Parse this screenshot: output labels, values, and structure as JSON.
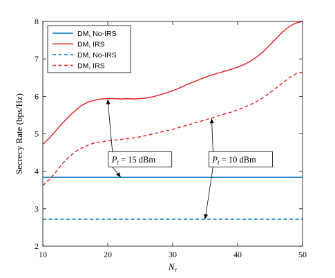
{
  "chart_data": {
    "type": "line",
    "title": "",
    "xlabel": "N",
    "xlabel_sub": "r",
    "ylabel": "Secrecy Rate (bps/Hz)",
    "xlim": [
      10,
      50
    ],
    "ylim": [
      2,
      8
    ],
    "xticks": [
      10,
      20,
      30,
      40,
      50
    ],
    "yticks": [
      2,
      3,
      4,
      5,
      6,
      7,
      8
    ],
    "grid": false,
    "legend_position": "top-left",
    "series": [
      {
        "name": "DM, No-IRS",
        "color": "#0072BD",
        "dash": "solid",
        "x": [
          10,
          50
        ],
        "y": [
          3.84,
          3.84
        ]
      },
      {
        "name": "DM, IRS",
        "color": "#E31A1C",
        "dash": "solid",
        "x": [
          10,
          11,
          12,
          13,
          14,
          15,
          16,
          17,
          18,
          19,
          20,
          21,
          22,
          23,
          24,
          25,
          26,
          27,
          28,
          29,
          30,
          31,
          32,
          33,
          34,
          35,
          36,
          37,
          38,
          39,
          40,
          41,
          42,
          43,
          44,
          45,
          46,
          47,
          48,
          49,
          50
        ],
        "y": [
          4.72,
          4.88,
          5.08,
          5.28,
          5.46,
          5.62,
          5.76,
          5.85,
          5.9,
          5.93,
          5.94,
          5.94,
          5.93,
          5.94,
          5.93,
          5.94,
          5.96,
          5.99,
          6.04,
          6.09,
          6.15,
          6.22,
          6.3,
          6.37,
          6.44,
          6.51,
          6.57,
          6.62,
          6.67,
          6.72,
          6.78,
          6.85,
          6.94,
          7.06,
          7.2,
          7.38,
          7.56,
          7.73,
          7.87,
          7.96,
          8.0
        ]
      },
      {
        "name": "DM, No-IRS",
        "color": "#0072BD",
        "dash": "dashed",
        "x": [
          10,
          50
        ],
        "y": [
          2.72,
          2.72
        ]
      },
      {
        "name": "DM, IRS",
        "color": "#E31A1C",
        "dash": "dashed",
        "x": [
          10,
          11,
          12,
          13,
          14,
          15,
          16,
          17,
          18,
          19,
          20,
          21,
          22,
          23,
          24,
          25,
          26,
          27,
          28,
          29,
          30,
          31,
          32,
          33,
          34,
          35,
          36,
          37,
          38,
          39,
          40,
          41,
          42,
          43,
          44,
          45,
          46,
          47,
          48,
          49,
          50
        ],
        "y": [
          3.62,
          3.78,
          3.98,
          4.2,
          4.38,
          4.52,
          4.62,
          4.7,
          4.76,
          4.79,
          4.81,
          4.83,
          4.85,
          4.87,
          4.89,
          4.92,
          4.96,
          5.0,
          5.04,
          5.08,
          5.12,
          5.17,
          5.22,
          5.27,
          5.32,
          5.37,
          5.42,
          5.48,
          5.53,
          5.58,
          5.64,
          5.71,
          5.78,
          5.87,
          5.97,
          6.1,
          6.23,
          6.37,
          6.5,
          6.6,
          6.65
        ]
      }
    ],
    "annotations": [
      {
        "id": "annot-15dbm",
        "text": "P",
        "sub": "t",
        "rest": " = 15 dBm",
        "box_data": [
          20.5,
          4.32
        ],
        "arrows_to": [
          [
            20,
            5.92
          ],
          [
            22,
            3.84
          ]
        ]
      },
      {
        "id": "annot-10dbm",
        "text": "P",
        "sub": "t",
        "rest": " = 10 dBm",
        "box_data": [
          36.0,
          4.32
        ],
        "arrows_to": [
          [
            36,
            5.41
          ],
          [
            35,
            2.72
          ]
        ]
      }
    ]
  }
}
